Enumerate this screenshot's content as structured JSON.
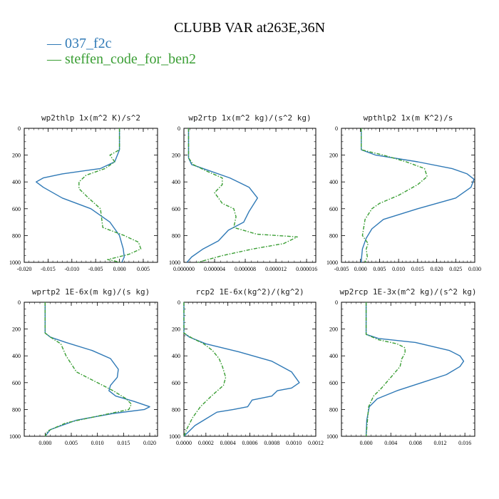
{
  "colors": {
    "series1": "#2f79b6",
    "series2": "#3a9e34"
  },
  "chart_data": {
    "title": "CLUBB VAR at263E,36N",
    "legend": [
      {
        "label": "— 037_f2c",
        "color": "#2f79b6"
      },
      {
        "label": "— steffen_code_for_ben2",
        "color": "#3a9e34"
      }
    ],
    "panels": [
      {
        "type": "line",
        "title": "wp2thlp   1x(m^2 K)/s^2",
        "xlim": [
          -0.02,
          0.008
        ],
        "ylim": [
          1000,
          0
        ],
        "xticks": [
          -0.02,
          -0.015,
          -0.01,
          -0.005,
          0,
          0.005
        ],
        "xtick_labels": [
          "-0.020",
          "-0.015",
          "-0.010",
          "-0.005",
          "0.000",
          "0.005"
        ],
        "yticks": [
          0,
          200,
          400,
          600,
          800,
          1000
        ],
        "ytick_labels": [
          "0",
          "200",
          "400",
          "600",
          "800",
          "1000"
        ],
        "series": [
          {
            "name": "037_f2c",
            "color": "#2f79b6",
            "dash": "solid",
            "x": [
              0,
              0,
              -0.001,
              -0.004,
              -0.012,
              -0.016,
              -0.0175,
              -0.016,
              -0.012,
              -0.006,
              -0.002,
              0,
              0.0008,
              0.001,
              0.0005
            ],
            "y": [
              0,
              160,
              250,
              300,
              340,
              370,
              400,
              440,
              520,
              600,
              700,
              800,
              900,
              960,
              1000
            ]
          },
          {
            "name": "steffen_code_for_ben2",
            "color": "#3a9e34",
            "dash": "dash",
            "x": [
              0,
              0,
              -0.002,
              -0.001,
              -0.003,
              -0.007,
              -0.0085,
              -0.0085,
              -0.0065,
              -0.004,
              -0.0035,
              0.001,
              0.004,
              0.0045,
              0.002,
              -0.0025,
              -0.001,
              0
            ],
            "y": [
              0,
              160,
              200,
              250,
              300,
              350,
              400,
              450,
              520,
              600,
              740,
              800,
              850,
              900,
              940,
              980,
              990,
              1000
            ]
          }
        ]
      },
      {
        "type": "line",
        "title": "wp2rtp   1x(m^2 kg)/(s^2 kg)",
        "xlim": [
          0,
          1.72e-05
        ],
        "ylim": [
          1000,
          0
        ],
        "xticks": [
          0,
          4e-06,
          8e-06,
          1.2e-05,
          1.6e-05
        ],
        "xtick_labels": [
          "0.000000",
          "0.000004",
          "0.000008",
          "0.000012",
          "0.000016"
        ],
        "yticks": [
          0,
          200,
          400,
          600,
          800,
          1000
        ],
        "ytick_labels": [
          "0",
          "200",
          "400",
          "600",
          "800",
          "1000"
        ],
        "series": [
          {
            "name": "037_f2c",
            "color": "#2f79b6",
            "dash": "solid",
            "x": [
              6e-07,
              6e-07,
              1e-06,
              3e-06,
              6e-06,
              8.5e-06,
              9.6e-06,
              8.5e-06,
              7.8e-06,
              5.8e-06,
              4.5e-06,
              2.5e-06,
              1e-06,
              4e-07
            ],
            "y": [
              0,
              220,
              270,
              310,
              370,
              440,
              520,
              620,
              700,
              760,
              840,
              900,
              960,
              1000
            ]
          },
          {
            "name": "steffen_code_for_ben2",
            "color": "#3a9e34",
            "dash": "dash",
            "x": [
              6e-07,
              6e-07,
              1.2e-06,
              3e-06,
              5e-06,
              5e-06,
              4e-06,
              5e-06,
              6.5e-06,
              6.8e-06,
              6.5e-06,
              9.5e-06,
              1.48e-05,
              1.3e-05,
              9e-06,
              5e-06,
              1.8e-06
            ],
            "y": [
              0,
              220,
              270,
              320,
              370,
              420,
              480,
              560,
              600,
              660,
              740,
              790,
              810,
              860,
              900,
              950,
              1000
            ]
          }
        ]
      },
      {
        "type": "line",
        "title": "wpthlp2   1x(m K^2)/s",
        "xlim": [
          -0.005,
          0.03
        ],
        "ylim": [
          1000,
          0
        ],
        "xticks": [
          -0.005,
          0,
          0.005,
          0.01,
          0.015,
          0.02,
          0.025,
          0.03
        ],
        "xtick_labels": [
          "-0.005",
          "0.000",
          "0.005",
          "0.010",
          "0.015",
          "0.020",
          "0.025",
          "0.030"
        ],
        "yticks": [
          0,
          200,
          400,
          600,
          800,
          1000
        ],
        "ytick_labels": [
          "0",
          "200",
          "400",
          "600",
          "800",
          "1000"
        ],
        "series": [
          {
            "name": "037_f2c",
            "color": "#2f79b6",
            "dash": "solid",
            "x": [
              0.0002,
              0.0002,
              0.004,
              0.015,
              0.024,
              0.028,
              0.0298,
              0.029,
              0.025,
              0.015,
              0.006,
              0.003,
              0.0015,
              0.0005,
              0.0003,
              0.0002
            ],
            "y": [
              0,
              160,
              200,
              250,
              300,
              340,
              380,
              440,
              520,
              600,
              680,
              750,
              820,
              900,
              960,
              1000
            ]
          },
          {
            "name": "steffen_code_for_ben2",
            "color": "#3a9e34",
            "dash": "dash",
            "x": [
              0.0002,
              0.0002,
              0.006,
              0.012,
              0.0168,
              0.0175,
              0.015,
              0.01,
              0.005,
              0.003,
              0.0012,
              0.0005,
              0.002,
              0.0015,
              0.0018,
              0.0012
            ],
            "y": [
              0,
              160,
              200,
              250,
              300,
              360,
              420,
              500,
              560,
              600,
              680,
              800,
              860,
              900,
              960,
              1000
            ]
          }
        ]
      },
      {
        "type": "line",
        "title": "wprtp2   1E-6x(m kg)/(s kg)",
        "xlim": [
          -0.004,
          0.0215
        ],
        "ylim": [
          1000,
          0
        ],
        "xticks": [
          0,
          0.005,
          0.01,
          0.015,
          0.02
        ],
        "xtick_labels": [
          "0.000",
          "0.005",
          "0.010",
          "0.015",
          "0.020"
        ],
        "yticks": [
          0,
          200,
          400,
          600,
          800,
          1000
        ],
        "ytick_labels": [
          "0",
          "200",
          "400",
          "600",
          "800",
          "1000"
        ],
        "series": [
          {
            "name": "037_f2c",
            "color": "#2f79b6",
            "dash": "solid",
            "x": [
              0,
              0,
              0.001,
              0.004,
              0.009,
              0.0125,
              0.014,
              0.0138,
              0.0125,
              0.0122,
              0.0135,
              0.017,
              0.02,
              0.019,
              0.013,
              0.006,
              0.001,
              0
            ],
            "y": [
              0,
              230,
              260,
              300,
              360,
              420,
              500,
              560,
              620,
              660,
              700,
              740,
              780,
              800,
              830,
              880,
              950,
              1000
            ]
          },
          {
            "name": "steffen_code_for_ben2",
            "color": "#3a9e34",
            "dash": "dash",
            "x": [
              0,
              0,
              0.001,
              0.003,
              0.004,
              0.006,
              0.01,
              0.013,
              0.0155,
              0.0165,
              0.016,
              0.01,
              0.004,
              0.0005,
              0
            ],
            "y": [
              0,
              230,
              260,
              310,
              400,
              520,
              600,
              660,
              720,
              760,
              800,
              850,
              900,
              960,
              1000
            ]
          }
        ]
      },
      {
        "type": "line",
        "title": "rcp2   1E-6x(kg^2)/(kg^2)",
        "xlim": [
          0,
          0.0012
        ],
        "ylim": [
          1000,
          0
        ],
        "xticks": [
          0,
          0.0002,
          0.0004,
          0.0006,
          0.0008,
          0.001,
          0.0012
        ],
        "xtick_labels": [
          "0.0000",
          "0.0002",
          "0.0004",
          "0.0006",
          "0.0008",
          "0.0010",
          "0.0012"
        ],
        "yticks": [
          0,
          200,
          400,
          600,
          800,
          1000
        ],
        "ytick_labels": [
          "0",
          "200",
          "400",
          "600",
          "800",
          "1000"
        ],
        "series": [
          {
            "name": "037_f2c",
            "color": "#2f79b6",
            "dash": "solid",
            "x": [
              0,
              0,
              5e-05,
              0.0002,
              0.0005,
              0.0008,
              0.00098,
              0.00105,
              0.00098,
              0.00085,
              0.0008,
              0.00062,
              0.00058,
              0.00045,
              0.0003,
              0.0002,
              0.0001,
              0
            ],
            "y": [
              0,
              230,
              260,
              310,
              370,
              440,
              520,
              600,
              640,
              660,
              700,
              730,
              780,
              800,
              820,
              870,
              920,
              1000
            ]
          },
          {
            "name": "steffen_code_for_ben2",
            "color": "#3a9e34",
            "dash": "dash",
            "x": [
              0,
              0,
              8e-05,
              0.00018,
              0.00026,
              0.00032,
              0.00035,
              0.00038,
              0.00036,
              0.00025,
              0.00015,
              8e-05,
              3e-05,
              0
            ],
            "y": [
              0,
              230,
              270,
              310,
              360,
              420,
              480,
              560,
              620,
              700,
              780,
              860,
              940,
              1000
            ]
          }
        ]
      },
      {
        "type": "line",
        "title": "wp2rcp   1E-3x(m^2 kg)/(s^2 kg)",
        "xlim": [
          -0.004,
          0.0176
        ],
        "ylim": [
          1000,
          0
        ],
        "xticks": [
          0,
          0.004,
          0.008,
          0.012,
          0.016
        ],
        "xtick_labels": [
          "0.000",
          "0.004",
          "0.008",
          "0.012",
          "0.016"
        ],
        "yticks": [
          0,
          200,
          400,
          600,
          800,
          1000
        ],
        "ytick_labels": [
          "0",
          "200",
          "400",
          "600",
          "800",
          "1000"
        ],
        "series": [
          {
            "name": "037_f2c",
            "color": "#2f79b6",
            "dash": "solid",
            "x": [
              0,
              0,
              0.002,
              0.008,
              0.0135,
              0.0152,
              0.0158,
              0.0152,
              0.013,
              0.009,
              0.005,
              0.0018,
              0.0005,
              0.0001,
              0
            ],
            "y": [
              0,
              240,
              270,
              300,
              360,
              400,
              440,
              480,
              540,
              600,
              660,
              720,
              780,
              880,
              1000
            ]
          },
          {
            "name": "steffen_code_for_ben2",
            "color": "#3a9e34",
            "dash": "dash",
            "x": [
              0,
              0,
              0.002,
              0.005,
              0.0063,
              0.0063,
              0.0058,
              0.0055,
              0.004,
              0.0025,
              0.0012,
              0.0004,
              0
            ],
            "y": [
              0,
              240,
              280,
              310,
              340,
              380,
              420,
              480,
              560,
              640,
              700,
              780,
              1000
            ]
          }
        ]
      }
    ]
  }
}
